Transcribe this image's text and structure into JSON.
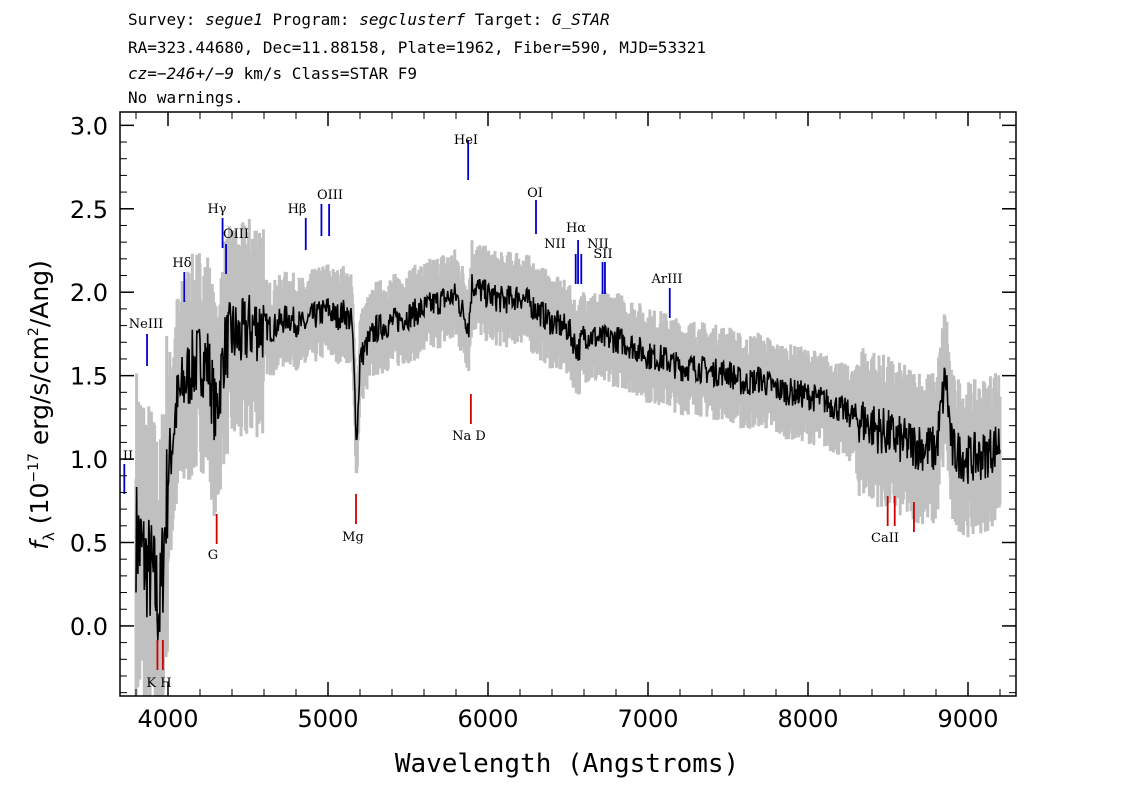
{
  "header": {
    "line1": {
      "survey_label": "Survey: ",
      "survey": "segue1",
      "program_label": " Program: ",
      "program": "segclusterf",
      "target_label": " Target: ",
      "target": "G_STAR"
    },
    "line2": "RA=323.44680, Dec=11.88158, Plate=1962, Fiber=590, MJD=53321",
    "line3": {
      "cz_label": "cz=",
      "cz": "−246+/−9",
      "rest": " km/s Class=STAR F9"
    },
    "line4": "No warnings."
  },
  "chart_data": {
    "type": "line",
    "xlabel": "Wavelength (Angstroms)",
    "ylabel": "f_λ (10^-17 erg/s/cm^2/Ang)",
    "xlim": [
      3700,
      9300
    ],
    "ylim": [
      -0.42,
      3.08
    ],
    "x_ticks": [
      4000,
      5000,
      6000,
      7000,
      8000,
      9000
    ],
    "y_ticks": [
      0.0,
      0.5,
      1.0,
      1.5,
      2.0,
      2.5,
      3.0
    ],
    "grid": false,
    "colors": {
      "flux": "#000000",
      "error_band": "#c0c0c0",
      "emission": "#0000cc",
      "absorption": "#cc0000"
    },
    "series": [
      {
        "role": "flux",
        "x": [
          3800,
          3850,
          3900,
          3950,
          4000,
          4050,
          4100,
          4150,
          4200,
          4250,
          4300,
          4350,
          4400,
          4450,
          4500,
          4550,
          4600,
          4650,
          4700,
          4750,
          4800,
          4850,
          4900,
          4950,
          5000,
          5050,
          5100,
          5150,
          5180,
          5200,
          5250,
          5300,
          5400,
          5500,
          5600,
          5700,
          5800,
          5880,
          5900,
          6000,
          6100,
          6200,
          6300,
          6400,
          6500,
          6563,
          6600,
          6700,
          6800,
          6900,
          7000,
          7100,
          7200,
          7300,
          7400,
          7500,
          7600,
          7700,
          7800,
          7900,
          8000,
          8100,
          8200,
          8300,
          8400,
          8500,
          8600,
          8700,
          8800,
          8860,
          8900,
          9000,
          9100,
          9200
        ],
        "y": [
          0.55,
          0.4,
          0.3,
          0.1,
          0.9,
          1.3,
          1.45,
          1.55,
          1.6,
          1.58,
          1.25,
          1.65,
          1.75,
          1.72,
          1.78,
          1.8,
          1.8,
          1.78,
          1.82,
          1.85,
          1.82,
          1.8,
          1.85,
          1.87,
          1.9,
          1.85,
          1.88,
          1.82,
          1.1,
          1.6,
          1.7,
          1.78,
          1.82,
          1.86,
          1.9,
          1.95,
          1.98,
          1.8,
          2.05,
          1.98,
          1.95,
          1.98,
          1.9,
          1.82,
          1.78,
          1.65,
          1.75,
          1.72,
          1.72,
          1.68,
          1.62,
          1.6,
          1.55,
          1.55,
          1.52,
          1.52,
          1.45,
          1.48,
          1.42,
          1.4,
          1.38,
          1.35,
          1.3,
          1.25,
          1.2,
          1.15,
          1.1,
          1.08,
          1.05,
          1.5,
          1.05,
          1.0,
          1.02,
          1.1
        ]
      }
    ],
    "line_labels": [
      {
        "text": "HeI",
        "x": 5876,
        "type": "emission"
      },
      {
        "text": "OI",
        "x": 6300,
        "type": "emission"
      },
      {
        "text": "Hγ",
        "x": 4341,
        "type": "emission"
      },
      {
        "text": "OIII",
        "x": 4363,
        "type": "emission"
      },
      {
        "text": "Hβ",
        "x": 4861,
        "type": "emission"
      },
      {
        "text": "OIII",
        "x": 4959,
        "type": "emission"
      },
      {
        "text": "OIII",
        "x": 5007,
        "type": "emission"
      },
      {
        "text": "Hδ",
        "x": 4102,
        "type": "emission"
      },
      {
        "text": "NeIII",
        "x": 3869,
        "type": "emission"
      },
      {
        "text": "OII",
        "x": 3727,
        "type": "emission"
      },
      {
        "text": "NII",
        "x": 6548,
        "type": "emission"
      },
      {
        "text": "Hα",
        "x": 6563,
        "type": "emission"
      },
      {
        "text": "NII",
        "x": 6583,
        "type": "emission"
      },
      {
        "text": "SII",
        "x": 6716,
        "type": "emission"
      },
      {
        "text": "SII",
        "x": 6731,
        "type": "emission"
      },
      {
        "text": "ArIII",
        "x": 7136,
        "type": "emission"
      },
      {
        "text": "Na D",
        "x": 5893,
        "type": "absorption"
      },
      {
        "text": "Mg",
        "x": 5175,
        "type": "absorption"
      },
      {
        "text": "G",
        "x": 4304,
        "type": "absorption"
      },
      {
        "text": "K",
        "x": 3934,
        "type": "absorption"
      },
      {
        "text": "H",
        "x": 3968,
        "type": "absorption"
      },
      {
        "text": "CaII",
        "x": 8498,
        "type": "absorption"
      },
      {
        "text": "CaII",
        "x": 8542,
        "type": "absorption"
      },
      {
        "text": "CaII",
        "x": 8662,
        "type": "absorption"
      }
    ],
    "printed_labels": {
      "HeI": "HeI",
      "OI": "OI",
      "Hg": "Hγ",
      "OIII_a": "OIII",
      "Hb": "Hβ",
      "OIII_b": "OIII",
      "Hd": "Hδ",
      "NeIII": "NeIII",
      "OII": "II",
      "NII_a": "NII",
      "Ha": "Hα",
      "NII_b": "NII",
      "SII": "SII",
      "ArIII": "ArIII",
      "NaD": "Na D",
      "Mg": "Mg",
      "G": "G",
      "KH": "K H",
      "CaII": "CaII"
    }
  }
}
